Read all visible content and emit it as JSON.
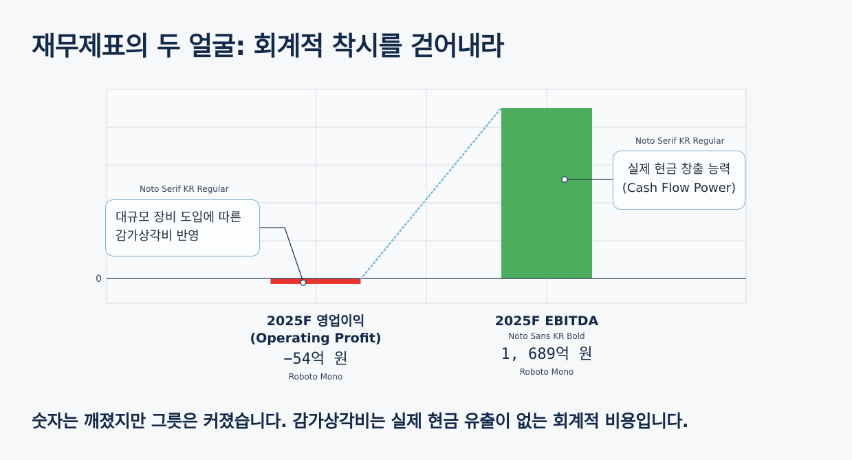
{
  "title": "재무제표의 두 얼굴: 회계적 착시를 걷어내라",
  "footer": "숫자는 깨졌지만 그릇은 커졌습니다. 감가상각비는 실제 현금 유출이 없는 회계적 비용입니다.",
  "chart_data": {
    "type": "bar",
    "categories": [
      "2025F 영업이익\n(Operating Profit)",
      "2025F EBITDA"
    ],
    "values": [
      -54,
      1689
    ],
    "value_labels": [
      "−54억 원",
      "1, 689억 원"
    ],
    "unit": "억 원",
    "ylim": [
      -130,
      1780
    ],
    "y_tick_labels": [
      "0"
    ],
    "grid": true,
    "colors": {
      "negative": "#e8342c",
      "positive": "#4cae5c",
      "connector": "#7ab8df",
      "axis": "#203a5a"
    },
    "connector_style": "dotted"
  },
  "category_block": {
    "op_name_1": "2025F 영업이익",
    "op_name_2": "(Operating Profit)",
    "op_value": "−54억 원",
    "op_font_note": "Roboto Mono",
    "ebitda_name": "2025F EBITDA",
    "ebitda_name_note": "Noto Sans KR Bold",
    "ebitda_value": "1, 689억 원",
    "ebitda_font_note": "Roboto Mono"
  },
  "callouts": {
    "left_tag": "Noto Serif KR Regular",
    "left_line1": "대규모 장비 도입에 따른",
    "left_line2": "감가상각비 반영",
    "right_tag": "Noto Serif KR Regular",
    "right_line1": "실제 현금 창출 능력",
    "right_line2": "(Cash Flow Power)"
  }
}
